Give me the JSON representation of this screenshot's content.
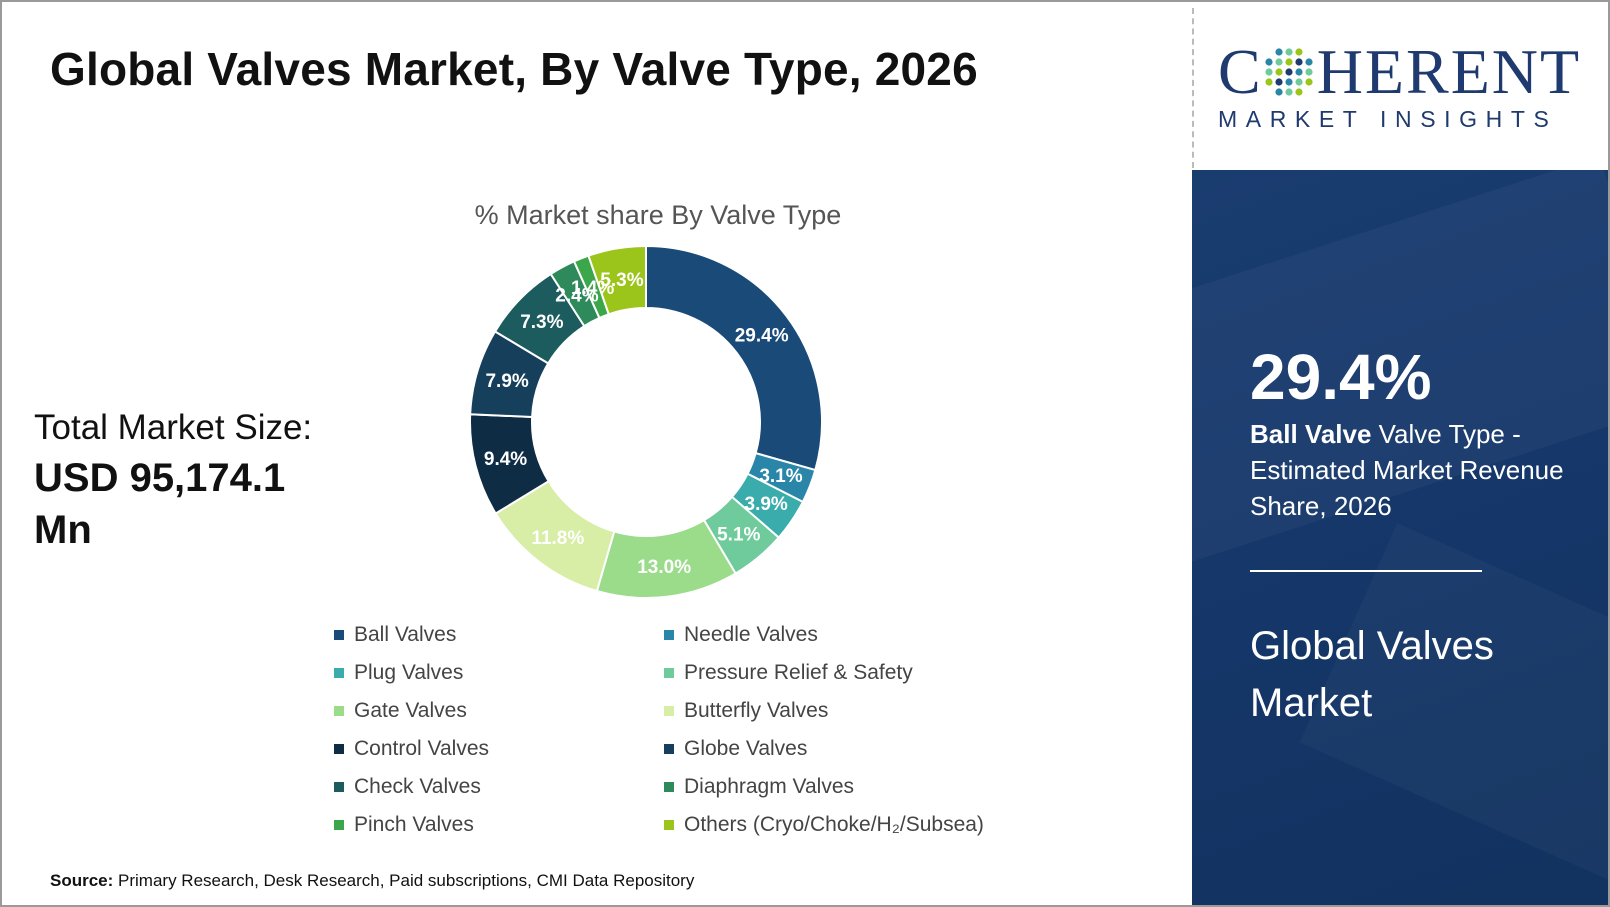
{
  "title": "Global Valves Market, By Valve Type, 2026",
  "total_market": {
    "label": "Total Market Size:",
    "value": "USD 95,174.1 Mn"
  },
  "chart_data": {
    "type": "pie",
    "donut": true,
    "title": "% Market share By Valve Type",
    "legend_position": "bottom",
    "unit": "%",
    "slices": [
      {
        "label": "Ball Valves",
        "value": 29.4,
        "display": "29.4%",
        "color": "#1a4a78"
      },
      {
        "label": "Needle Valves",
        "value": 3.1,
        "display": "3.1%",
        "color": "#2a86a8"
      },
      {
        "label": "Plug Valves",
        "value": 3.9,
        "display": "3.9%",
        "color": "#3aacab"
      },
      {
        "label": "Pressure Relief & Safety",
        "value": 5.1,
        "display": "5.1%",
        "color": "#6fcb9b"
      },
      {
        "label": "Gate Valves",
        "value": 13.0,
        "display": "13.0%",
        "color": "#9adc8a"
      },
      {
        "label": "Butterfly Valves",
        "value": 11.8,
        "display": "11.8%",
        "color": "#d8eda6"
      },
      {
        "label": "Control Valves",
        "value": 9.4,
        "display": "9.4%",
        "color": "#0f2c45"
      },
      {
        "label": "Globe Valves",
        "value": 7.9,
        "display": "7.9%",
        "color": "#163f5c"
      },
      {
        "label": "Check Valves",
        "value": 7.3,
        "display": "7.3%",
        "color": "#1c5b5e"
      },
      {
        "label": "Diaphragm Valves",
        "value": 2.4,
        "display": "2.4%",
        "color": "#2e8a5a"
      },
      {
        "label": "Pinch Valves",
        "value": 1.4,
        "display": "1.4%",
        "color": "#3ca64a"
      },
      {
        "label": "Others (Cryo/Choke/H₂/Subsea)",
        "value": 5.3,
        "display": "5.3%",
        "color": "#9cc51c"
      }
    ]
  },
  "source": {
    "label": "Source:",
    "text": "Primary Research, Desk Research, Paid subscriptions, CMI Data Repository"
  },
  "logo": {
    "top": "COHERENT",
    "top_first": "C",
    "top_rest": "HERENT",
    "bottom": "MARKET INSIGHTS"
  },
  "highlight": {
    "percent": "29.4%",
    "segment_bold": "Ball Valve",
    "description": " Valve Type - Estimated Market Revenue Share, 2026",
    "market_name": "Global Valves Market"
  }
}
